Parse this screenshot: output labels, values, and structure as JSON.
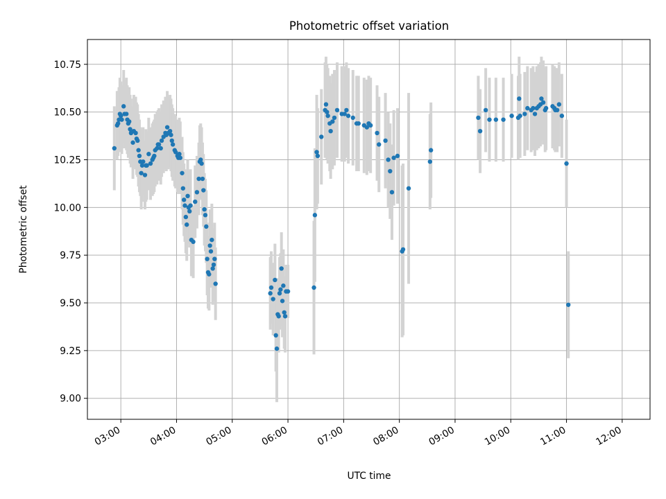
{
  "chart_data": {
    "type": "scatter",
    "title": "Photometric offset variation",
    "xlabel": "UTC time",
    "ylabel": "Photometric offset",
    "xlim": [
      "02:24",
      "12:30"
    ],
    "ylim": [
      8.89,
      10.88
    ],
    "xticks": [
      "03:00",
      "04:00",
      "05:00",
      "06:00",
      "07:00",
      "08:00",
      "09:00",
      "10:00",
      "11:00",
      "12:00"
    ],
    "yticks": [
      "9.00",
      "9.25",
      "9.50",
      "9.75",
      "10.00",
      "10.25",
      "10.50",
      "10.75"
    ],
    "grid": true,
    "colors": {
      "points": "#1f77b4",
      "errorbars": "#d3d3d3",
      "grid": "#b0b0b0"
    },
    "points": [
      {
        "x": "02:53",
        "y": 10.31,
        "err": 0.22
      },
      {
        "x": "02:56",
        "y": 10.43,
        "err": 0.18
      },
      {
        "x": "02:57",
        "y": 10.44,
        "err": 0.17
      },
      {
        "x": "02:58",
        "y": 10.46,
        "err": 0.17
      },
      {
        "x": "02:59",
        "y": 10.49,
        "err": 0.19
      },
      {
        "x": "03:00",
        "y": 10.48,
        "err": 0.18
      },
      {
        "x": "03:01",
        "y": 10.46,
        "err": 0.18
      },
      {
        "x": "03:03",
        "y": 10.53,
        "err": 0.19
      },
      {
        "x": "03:04",
        "y": 10.49,
        "err": 0.18
      },
      {
        "x": "03:06",
        "y": 10.49,
        "err": 0.19
      },
      {
        "x": "03:07",
        "y": 10.46,
        "err": 0.18
      },
      {
        "x": "03:08",
        "y": 10.44,
        "err": 0.18
      },
      {
        "x": "03:09",
        "y": 10.45,
        "err": 0.18
      },
      {
        "x": "03:10",
        "y": 10.41,
        "err": 0.18
      },
      {
        "x": "03:11",
        "y": 10.39,
        "err": 0.18
      },
      {
        "x": "03:13",
        "y": 10.34,
        "err": 0.19
      },
      {
        "x": "03:14",
        "y": 10.4,
        "err": 0.19
      },
      {
        "x": "03:16",
        "y": 10.39,
        "err": 0.19
      },
      {
        "x": "03:17",
        "y": 10.36,
        "err": 0.19
      },
      {
        "x": "03:18",
        "y": 10.35,
        "err": 0.19
      },
      {
        "x": "03:19",
        "y": 10.3,
        "err": 0.19
      },
      {
        "x": "03:20",
        "y": 10.27,
        "err": 0.19
      },
      {
        "x": "03:21",
        "y": 10.24,
        "err": 0.18
      },
      {
        "x": "03:22",
        "y": 10.18,
        "err": 0.19
      },
      {
        "x": "03:23",
        "y": 10.22,
        "err": 0.19
      },
      {
        "x": "03:24",
        "y": 10.24,
        "err": 0.18
      },
      {
        "x": "03:26",
        "y": 10.17,
        "err": 0.18
      },
      {
        "x": "03:27",
        "y": 10.22,
        "err": 0.19
      },
      {
        "x": "03:28",
        "y": 10.22,
        "err": 0.18
      },
      {
        "x": "03:30",
        "y": 10.28,
        "err": 0.19
      },
      {
        "x": "03:32",
        "y": 10.23,
        "err": 0.19
      },
      {
        "x": "03:34",
        "y": 10.25,
        "err": 0.19
      },
      {
        "x": "03:35",
        "y": 10.26,
        "err": 0.19
      },
      {
        "x": "03:36",
        "y": 10.27,
        "err": 0.19
      },
      {
        "x": "03:37",
        "y": 10.3,
        "err": 0.19
      },
      {
        "x": "03:39",
        "y": 10.31,
        "err": 0.19
      },
      {
        "x": "03:40",
        "y": 10.33,
        "err": 0.18
      },
      {
        "x": "03:41",
        "y": 10.33,
        "err": 0.19
      },
      {
        "x": "03:43",
        "y": 10.31,
        "err": 0.19
      },
      {
        "x": "03:44",
        "y": 10.35,
        "err": 0.19
      },
      {
        "x": "03:46",
        "y": 10.37,
        "err": 0.19
      },
      {
        "x": "03:48",
        "y": 10.39,
        "err": 0.19
      },
      {
        "x": "03:49",
        "y": 10.38,
        "err": 0.19
      },
      {
        "x": "03:50",
        "y": 10.42,
        "err": 0.19
      },
      {
        "x": "03:51",
        "y": 10.39,
        "err": 0.19
      },
      {
        "x": "03:53",
        "y": 10.4,
        "err": 0.19
      },
      {
        "x": "03:54",
        "y": 10.38,
        "err": 0.19
      },
      {
        "x": "03:55",
        "y": 10.35,
        "err": 0.19
      },
      {
        "x": "03:56",
        "y": 10.33,
        "err": 0.19
      },
      {
        "x": "03:58",
        "y": 10.3,
        "err": 0.19
      },
      {
        "x": "03:59",
        "y": 10.29,
        "err": 0.19
      },
      {
        "x": "04:01",
        "y": 10.27,
        "err": 0.19
      },
      {
        "x": "04:02",
        "y": 10.26,
        "err": 0.19
      },
      {
        "x": "04:03",
        "y": 10.28,
        "err": 0.19
      },
      {
        "x": "04:04",
        "y": 10.26,
        "err": 0.19
      },
      {
        "x": "04:06",
        "y": 10.18,
        "err": 0.19
      },
      {
        "x": "04:07",
        "y": 10.1,
        "err": 0.19
      },
      {
        "x": "04:08",
        "y": 10.04,
        "err": 0.19
      },
      {
        "x": "04:09",
        "y": 10.01,
        "err": 0.19
      },
      {
        "x": "04:10",
        "y": 9.95,
        "err": 0.19
      },
      {
        "x": "04:11",
        "y": 9.91,
        "err": 0.19
      },
      {
        "x": "04:12",
        "y": 10.06,
        "err": 0.19
      },
      {
        "x": "04:13",
        "y": 10.0,
        "err": 0.19
      },
      {
        "x": "04:14",
        "y": 9.98,
        "err": 0.19
      },
      {
        "x": "04:15",
        "y": 10.01,
        "err": 0.19
      },
      {
        "x": "04:16",
        "y": 9.83,
        "err": 0.19
      },
      {
        "x": "04:18",
        "y": 9.82,
        "err": 0.19
      },
      {
        "x": "04:20",
        "y": 10.03,
        "err": 0.19
      },
      {
        "x": "04:22",
        "y": 10.08,
        "err": 0.19
      },
      {
        "x": "04:24",
        "y": 10.15,
        "err": 0.19
      },
      {
        "x": "04:25",
        "y": 10.24,
        "err": 0.19
      },
      {
        "x": "04:26",
        "y": 10.25,
        "err": 0.19
      },
      {
        "x": "04:27",
        "y": 10.23,
        "err": 0.19
      },
      {
        "x": "04:28",
        "y": 10.15,
        "err": 0.19
      },
      {
        "x": "04:29",
        "y": 10.09,
        "err": 0.19
      },
      {
        "x": "04:30",
        "y": 9.99,
        "err": 0.19
      },
      {
        "x": "04:31",
        "y": 9.96,
        "err": 0.19
      },
      {
        "x": "04:32",
        "y": 9.9,
        "err": 0.19
      },
      {
        "x": "04:33",
        "y": 9.73,
        "err": 0.19
      },
      {
        "x": "04:34",
        "y": 9.66,
        "err": 0.19
      },
      {
        "x": "04:35",
        "y": 9.65,
        "err": 0.19
      },
      {
        "x": "04:36",
        "y": 9.8,
        "err": 0.19
      },
      {
        "x": "04:37",
        "y": 9.77,
        "err": 0.19
      },
      {
        "x": "04:38",
        "y": 9.83,
        "err": 0.19
      },
      {
        "x": "04:39",
        "y": 9.68,
        "err": 0.19
      },
      {
        "x": "04:40",
        "y": 9.7,
        "err": 0.19
      },
      {
        "x": "04:41",
        "y": 9.73,
        "err": 0.19
      },
      {
        "x": "04:42",
        "y": 9.6,
        "err": 0.19
      },
      {
        "x": "05:41",
        "y": 9.55,
        "err": 0.19
      },
      {
        "x": "05:42",
        "y": 9.58,
        "err": 0.19
      },
      {
        "x": "05:44",
        "y": 9.52,
        "err": 0.19
      },
      {
        "x": "05:46",
        "y": 9.62,
        "err": 0.19
      },
      {
        "x": "05:47",
        "y": 9.33,
        "err": 0.19
      },
      {
        "x": "05:48",
        "y": 9.26,
        "err": 0.28
      },
      {
        "x": "05:49",
        "y": 9.44,
        "err": 0.19
      },
      {
        "x": "05:50",
        "y": 9.43,
        "err": 0.19
      },
      {
        "x": "05:51",
        "y": 9.55,
        "err": 0.19
      },
      {
        "x": "05:52",
        "y": 9.57,
        "err": 0.19
      },
      {
        "x": "05:53",
        "y": 9.68,
        "err": 0.19
      },
      {
        "x": "05:54",
        "y": 9.51,
        "err": 0.19
      },
      {
        "x": "05:55",
        "y": 9.59,
        "err": 0.19
      },
      {
        "x": "05:56",
        "y": 9.45,
        "err": 0.19
      },
      {
        "x": "05:57",
        "y": 9.43,
        "err": 0.19
      },
      {
        "x": "05:58",
        "y": 9.56,
        "err": 0.14
      },
      {
        "x": "06:00",
        "y": 9.56,
        "err": 0.14
      },
      {
        "x": "06:28",
        "y": 9.58,
        "err": 0.35
      },
      {
        "x": "06:29",
        "y": 9.96,
        "err": 0.35
      },
      {
        "x": "06:31",
        "y": 10.29,
        "err": 0.3
      },
      {
        "x": "06:32",
        "y": 10.27,
        "err": 0.25
      },
      {
        "x": "06:36",
        "y": 10.37,
        "err": 0.25
      },
      {
        "x": "06:40",
        "y": 10.51,
        "err": 0.25
      },
      {
        "x": "06:41",
        "y": 10.54,
        "err": 0.25
      },
      {
        "x": "06:42",
        "y": 10.5,
        "err": 0.25
      },
      {
        "x": "06:43",
        "y": 10.48,
        "err": 0.25
      },
      {
        "x": "06:45",
        "y": 10.44,
        "err": 0.25
      },
      {
        "x": "06:46",
        "y": 10.4,
        "err": 0.25
      },
      {
        "x": "06:48",
        "y": 10.45,
        "err": 0.25
      },
      {
        "x": "06:50",
        "y": 10.47,
        "err": 0.25
      },
      {
        "x": "06:53",
        "y": 10.51,
        "err": 0.25
      },
      {
        "x": "06:58",
        "y": 10.49,
        "err": 0.25
      },
      {
        "x": "07:01",
        "y": 10.49,
        "err": 0.25
      },
      {
        "x": "07:03",
        "y": 10.51,
        "err": 0.25
      },
      {
        "x": "07:05",
        "y": 10.48,
        "err": 0.25
      },
      {
        "x": "07:10",
        "y": 10.47,
        "err": 0.25
      },
      {
        "x": "07:14",
        "y": 10.44,
        "err": 0.25
      },
      {
        "x": "07:16",
        "y": 10.44,
        "err": 0.25
      },
      {
        "x": "07:22",
        "y": 10.43,
        "err": 0.25
      },
      {
        "x": "07:25",
        "y": 10.42,
        "err": 0.25
      },
      {
        "x": "07:27",
        "y": 10.44,
        "err": 0.25
      },
      {
        "x": "07:29",
        "y": 10.43,
        "err": 0.25
      },
      {
        "x": "07:36",
        "y": 10.39,
        "err": 0.25
      },
      {
        "x": "07:38",
        "y": 10.33,
        "err": 0.25
      },
      {
        "x": "07:45",
        "y": 10.35,
        "err": 0.25
      },
      {
        "x": "07:48",
        "y": 10.25,
        "err": 0.25
      },
      {
        "x": "07:50",
        "y": 10.19,
        "err": 0.25
      },
      {
        "x": "07:52",
        "y": 10.08,
        "err": 0.25
      },
      {
        "x": "07:54",
        "y": 10.26,
        "err": 0.25
      },
      {
        "x": "07:58",
        "y": 10.27,
        "err": 0.25
      },
      {
        "x": "08:03",
        "y": 9.77,
        "err": 0.45
      },
      {
        "x": "08:04",
        "y": 9.78,
        "err": 0.45
      },
      {
        "x": "08:10",
        "y": 10.1,
        "err": 0.5
      },
      {
        "x": "08:33",
        "y": 10.24,
        "err": 0.25
      },
      {
        "x": "08:34",
        "y": 10.3,
        "err": 0.25
      },
      {
        "x": "09:25",
        "y": 10.47,
        "err": 0.22
      },
      {
        "x": "09:27",
        "y": 10.4,
        "err": 0.22
      },
      {
        "x": "09:33",
        "y": 10.51,
        "err": 0.22
      },
      {
        "x": "09:37",
        "y": 10.46,
        "err": 0.22
      },
      {
        "x": "09:44",
        "y": 10.46,
        "err": 0.22
      },
      {
        "x": "09:52",
        "y": 10.46,
        "err": 0.22
      },
      {
        "x": "10:01",
        "y": 10.48,
        "err": 0.22
      },
      {
        "x": "10:08",
        "y": 10.47,
        "err": 0.22
      },
      {
        "x": "10:09",
        "y": 10.57,
        "err": 0.22
      },
      {
        "x": "10:10",
        "y": 10.48,
        "err": 0.22
      },
      {
        "x": "10:15",
        "y": 10.49,
        "err": 0.22
      },
      {
        "x": "10:18",
        "y": 10.52,
        "err": 0.22
      },
      {
        "x": "10:22",
        "y": 10.51,
        "err": 0.22
      },
      {
        "x": "10:24",
        "y": 10.52,
        "err": 0.22
      },
      {
        "x": "10:26",
        "y": 10.49,
        "err": 0.22
      },
      {
        "x": "10:28",
        "y": 10.52,
        "err": 0.22
      },
      {
        "x": "10:30",
        "y": 10.53,
        "err": 0.22
      },
      {
        "x": "10:32",
        "y": 10.54,
        "err": 0.22
      },
      {
        "x": "10:33",
        "y": 10.57,
        "err": 0.22
      },
      {
        "x": "10:35",
        "y": 10.55,
        "err": 0.22
      },
      {
        "x": "10:37",
        "y": 10.51,
        "err": 0.22
      },
      {
        "x": "10:38",
        "y": 10.52,
        "err": 0.22
      },
      {
        "x": "10:45",
        "y": 10.53,
        "err": 0.22
      },
      {
        "x": "10:47",
        "y": 10.52,
        "err": 0.22
      },
      {
        "x": "10:48",
        "y": 10.51,
        "err": 0.22
      },
      {
        "x": "10:50",
        "y": 10.51,
        "err": 0.22
      },
      {
        "x": "10:52",
        "y": 10.54,
        "err": 0.22
      },
      {
        "x": "10:55",
        "y": 10.48,
        "err": 0.22
      },
      {
        "x": "11:00",
        "y": 10.23,
        "err": 0.23
      },
      {
        "x": "11:02",
        "y": 9.49,
        "err": 0.28
      }
    ]
  }
}
